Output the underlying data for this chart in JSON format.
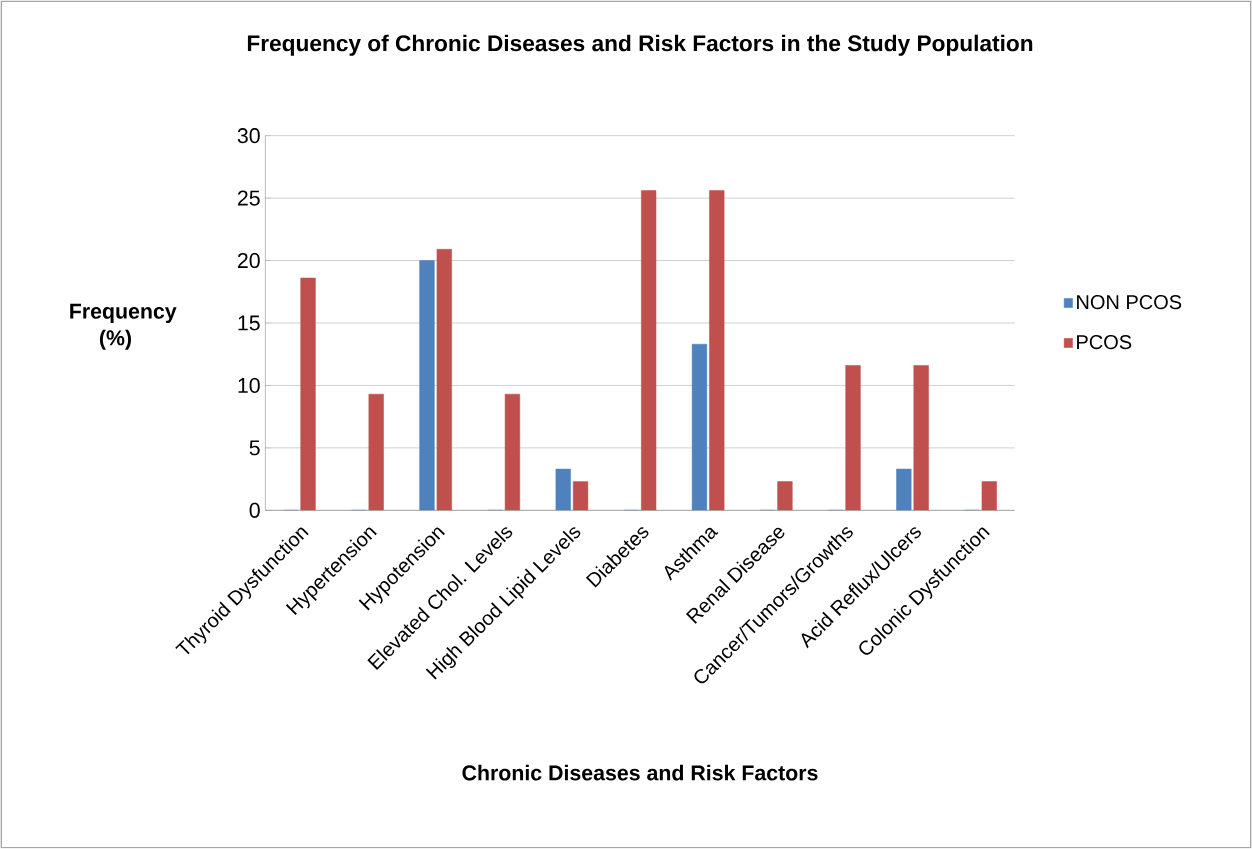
{
  "chart_data": {
    "type": "bar",
    "title": "Frequency of Chronic Diseases and Risk Factors in the Study Population",
    "xlabel": "Chronic Diseases and Risk Factors",
    "ylabel": "Frequency (%)",
    "categories": [
      "Thyroid Dysfunction",
      "Hypertension",
      "Hypotension",
      "Elevated Chol. Levels",
      "High Blood Lipid Levels",
      "Diabetes",
      "Asthma",
      "Renal Disease",
      "Cancer/Tumors/Growths",
      "Acid Reflux/Ulcers",
      "Colonic Dysfunction"
    ],
    "series": [
      {
        "name": "NON PCOS",
        "color": "#4f81bd",
        "values": [
          0,
          0,
          20,
          0,
          3.3,
          0,
          13.3,
          0,
          0,
          3.3,
          0
        ]
      },
      {
        "name": "PCOS",
        "color": "#c0504d",
        "values": [
          18.6,
          9.3,
          20.9,
          9.3,
          2.3,
          25.6,
          25.6,
          2.3,
          11.6,
          11.6,
          2.3
        ]
      }
    ],
    "ylim": [
      0,
      30
    ],
    "yticks": [
      0,
      5,
      10,
      15,
      20,
      25,
      30
    ],
    "grid": "y",
    "legend": "right"
  }
}
